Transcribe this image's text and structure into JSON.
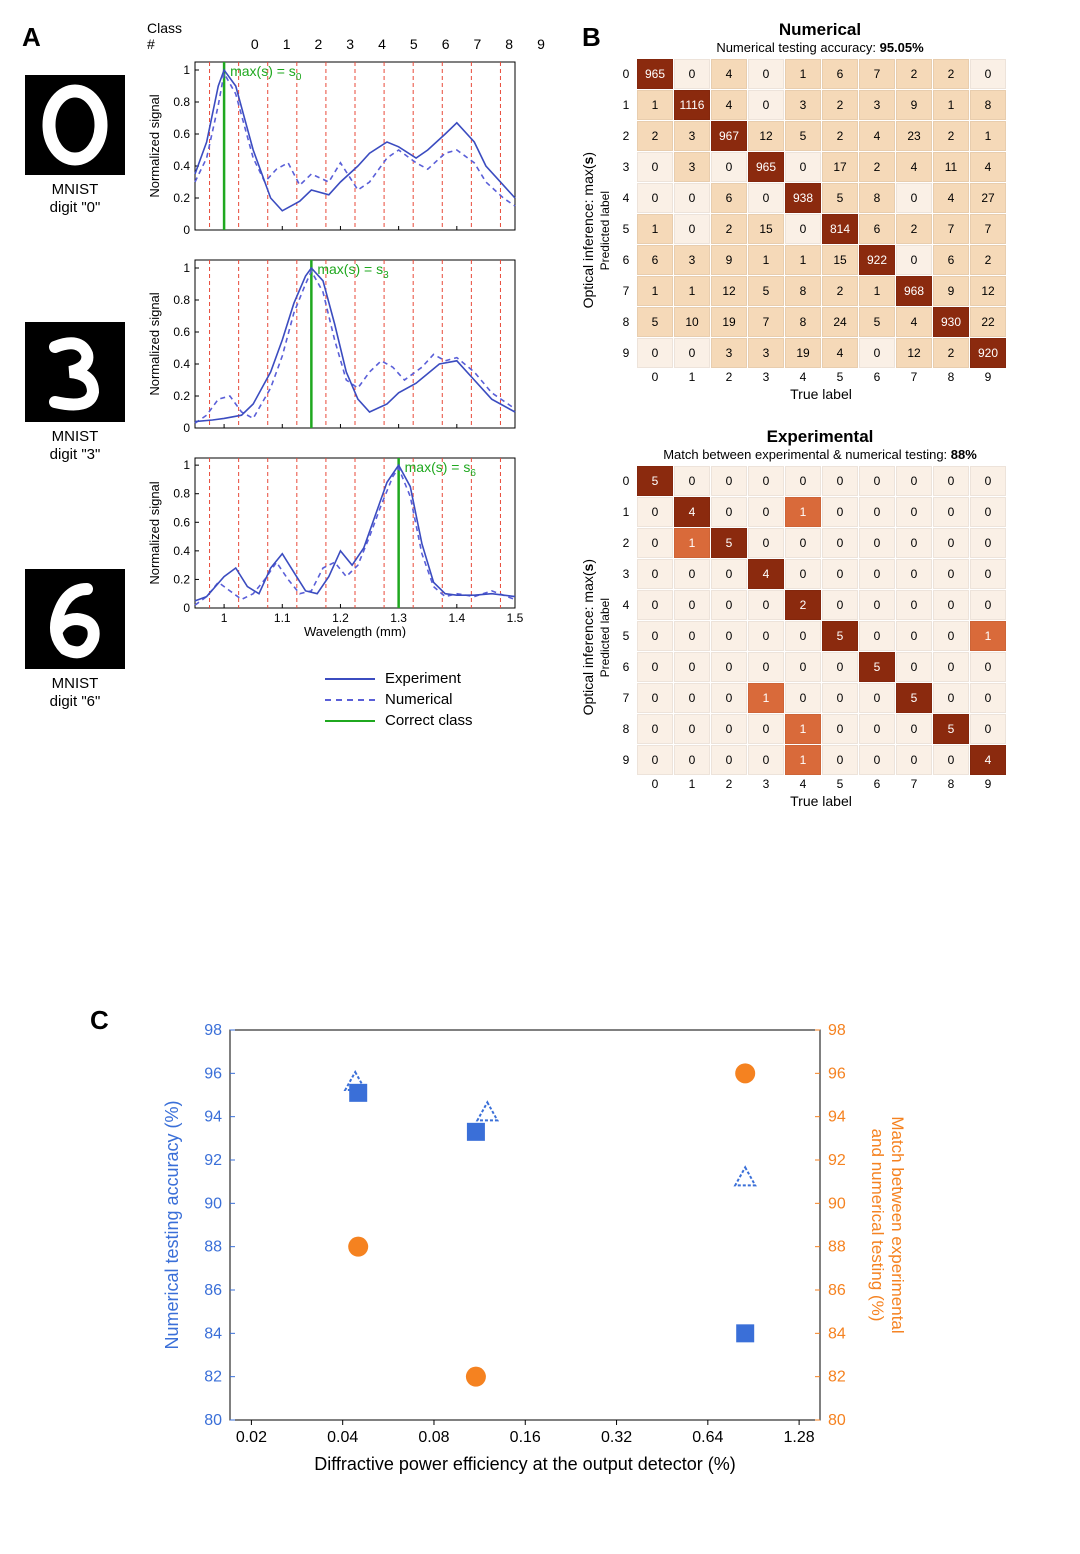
{
  "panel_labels": {
    "A": "A",
    "B": "B",
    "C": "C"
  },
  "colors": {
    "experiment_line": "#3b4cc0",
    "numerical_line": "#5a5fd8",
    "correct_line": "#1fa81f",
    "dashed_red": "#e84a3a",
    "axis": "#000000",
    "blue_marker": "#3a6fd8",
    "orange_marker": "#f58220",
    "cm_bg": "#faf0e6",
    "cm_diag": "#8b2a0e",
    "cm_mid": "#d96a3a",
    "cm_light": "#f5d9b8"
  },
  "panelA": {
    "class_header_label": "Class #",
    "class_numbers": [
      "0",
      "1",
      "2",
      "3",
      "4",
      "5",
      "6",
      "7",
      "8",
      "9"
    ],
    "y_label": "Normalized signal",
    "x_label": "Wavelength (mm)",
    "x_range": [
      0.95,
      1.5
    ],
    "y_range": [
      0,
      1.05
    ],
    "x_ticks": [
      1.0,
      1.1,
      1.2,
      1.3,
      1.4,
      1.5
    ],
    "y_ticks": [
      0,
      0.2,
      0.4,
      0.6,
      0.8,
      1
    ],
    "class_wavelengths": [
      0.975,
      1.025,
      1.075,
      1.125,
      1.175,
      1.225,
      1.275,
      1.325,
      1.375,
      1.425,
      1.475
    ],
    "legend": {
      "experiment": "Experiment",
      "numerical": "Numerical",
      "correct": "Correct class"
    },
    "digits": [
      {
        "label_line1": "MNIST",
        "label_line2": "digit \"0\"",
        "glyph": "0",
        "max_label": "max(s) = s",
        "max_sub": "0",
        "correct_x": 1.0,
        "experiment": [
          [
            0.95,
            0.35
          ],
          [
            0.97,
            0.55
          ],
          [
            0.99,
            0.9
          ],
          [
            1.0,
            1.0
          ],
          [
            1.02,
            0.9
          ],
          [
            1.05,
            0.5
          ],
          [
            1.08,
            0.2
          ],
          [
            1.1,
            0.12
          ],
          [
            1.13,
            0.18
          ],
          [
            1.15,
            0.25
          ],
          [
            1.18,
            0.22
          ],
          [
            1.2,
            0.3
          ],
          [
            1.23,
            0.4
          ],
          [
            1.25,
            0.48
          ],
          [
            1.28,
            0.55
          ],
          [
            1.3,
            0.52
          ],
          [
            1.33,
            0.45
          ],
          [
            1.35,
            0.5
          ],
          [
            1.38,
            0.6
          ],
          [
            1.4,
            0.67
          ],
          [
            1.43,
            0.55
          ],
          [
            1.45,
            0.4
          ],
          [
            1.48,
            0.28
          ],
          [
            1.5,
            0.2
          ]
        ],
        "numerical": [
          [
            0.95,
            0.3
          ],
          [
            0.97,
            0.45
          ],
          [
            0.99,
            0.78
          ],
          [
            1.0,
            0.98
          ],
          [
            1.02,
            0.85
          ],
          [
            1.05,
            0.45
          ],
          [
            1.07,
            0.3
          ],
          [
            1.09,
            0.38
          ],
          [
            1.11,
            0.42
          ],
          [
            1.13,
            0.28
          ],
          [
            1.15,
            0.35
          ],
          [
            1.18,
            0.3
          ],
          [
            1.2,
            0.42
          ],
          [
            1.23,
            0.25
          ],
          [
            1.25,
            0.3
          ],
          [
            1.28,
            0.45
          ],
          [
            1.3,
            0.5
          ],
          [
            1.33,
            0.42
          ],
          [
            1.35,
            0.38
          ],
          [
            1.38,
            0.48
          ],
          [
            1.4,
            0.5
          ],
          [
            1.43,
            0.42
          ],
          [
            1.45,
            0.3
          ],
          [
            1.48,
            0.2
          ],
          [
            1.5,
            0.15
          ]
        ]
      },
      {
        "label_line1": "MNIST",
        "label_line2": "digit \"3\"",
        "glyph": "3",
        "max_label": "max(s) = s",
        "max_sub": "3",
        "correct_x": 1.15,
        "experiment": [
          [
            0.95,
            0.04
          ],
          [
            0.98,
            0.05
          ],
          [
            1.0,
            0.06
          ],
          [
            1.03,
            0.08
          ],
          [
            1.05,
            0.15
          ],
          [
            1.08,
            0.35
          ],
          [
            1.1,
            0.55
          ],
          [
            1.12,
            0.78
          ],
          [
            1.14,
            0.95
          ],
          [
            1.15,
            1.0
          ],
          [
            1.17,
            0.92
          ],
          [
            1.19,
            0.65
          ],
          [
            1.21,
            0.35
          ],
          [
            1.23,
            0.18
          ],
          [
            1.25,
            0.1
          ],
          [
            1.28,
            0.15
          ],
          [
            1.3,
            0.22
          ],
          [
            1.33,
            0.28
          ],
          [
            1.35,
            0.34
          ],
          [
            1.37,
            0.4
          ],
          [
            1.4,
            0.42
          ],
          [
            1.43,
            0.3
          ],
          [
            1.46,
            0.18
          ],
          [
            1.5,
            0.1
          ]
        ],
        "numerical": [
          [
            0.95,
            0.03
          ],
          [
            0.97,
            0.08
          ],
          [
            0.99,
            0.18
          ],
          [
            1.01,
            0.2
          ],
          [
            1.03,
            0.1
          ],
          [
            1.05,
            0.06
          ],
          [
            1.08,
            0.25
          ],
          [
            1.1,
            0.45
          ],
          [
            1.12,
            0.72
          ],
          [
            1.14,
            0.9
          ],
          [
            1.15,
            0.98
          ],
          [
            1.17,
            0.85
          ],
          [
            1.19,
            0.55
          ],
          [
            1.21,
            0.3
          ],
          [
            1.23,
            0.25
          ],
          [
            1.25,
            0.35
          ],
          [
            1.27,
            0.42
          ],
          [
            1.29,
            0.38
          ],
          [
            1.31,
            0.3
          ],
          [
            1.34,
            0.38
          ],
          [
            1.36,
            0.46
          ],
          [
            1.38,
            0.42
          ],
          [
            1.4,
            0.44
          ],
          [
            1.43,
            0.35
          ],
          [
            1.46,
            0.22
          ],
          [
            1.5,
            0.12
          ]
        ]
      },
      {
        "label_line1": "MNIST",
        "label_line2": "digit \"6\"",
        "glyph": "6",
        "max_label": "max(s) = s",
        "max_sub": "6",
        "correct_x": 1.3,
        "experiment": [
          [
            0.95,
            0.05
          ],
          [
            0.97,
            0.08
          ],
          [
            1.0,
            0.22
          ],
          [
            1.02,
            0.28
          ],
          [
            1.04,
            0.15
          ],
          [
            1.06,
            0.1
          ],
          [
            1.08,
            0.28
          ],
          [
            1.1,
            0.38
          ],
          [
            1.12,
            0.25
          ],
          [
            1.14,
            0.12
          ],
          [
            1.16,
            0.1
          ],
          [
            1.18,
            0.22
          ],
          [
            1.2,
            0.4
          ],
          [
            1.22,
            0.3
          ],
          [
            1.24,
            0.42
          ],
          [
            1.26,
            0.65
          ],
          [
            1.28,
            0.88
          ],
          [
            1.3,
            1.0
          ],
          [
            1.32,
            0.85
          ],
          [
            1.34,
            0.45
          ],
          [
            1.36,
            0.18
          ],
          [
            1.38,
            0.1
          ],
          [
            1.4,
            0.09
          ],
          [
            1.43,
            0.09
          ],
          [
            1.46,
            0.1
          ],
          [
            1.5,
            0.08
          ]
        ],
        "numerical": [
          [
            0.95,
            0.02
          ],
          [
            0.97,
            0.08
          ],
          [
            0.99,
            0.18
          ],
          [
            1.01,
            0.12
          ],
          [
            1.03,
            0.06
          ],
          [
            1.05,
            0.1
          ],
          [
            1.07,
            0.2
          ],
          [
            1.09,
            0.32
          ],
          [
            1.11,
            0.2
          ],
          [
            1.13,
            0.1
          ],
          [
            1.15,
            0.12
          ],
          [
            1.17,
            0.28
          ],
          [
            1.19,
            0.32
          ],
          [
            1.21,
            0.22
          ],
          [
            1.23,
            0.3
          ],
          [
            1.25,
            0.5
          ],
          [
            1.27,
            0.72
          ],
          [
            1.29,
            0.92
          ],
          [
            1.3,
            0.98
          ],
          [
            1.32,
            0.78
          ],
          [
            1.34,
            0.38
          ],
          [
            1.36,
            0.15
          ],
          [
            1.38,
            0.08
          ],
          [
            1.4,
            0.1
          ],
          [
            1.43,
            0.08
          ],
          [
            1.46,
            0.12
          ],
          [
            1.5,
            0.06
          ]
        ]
      }
    ]
  },
  "panelB": {
    "numerical": {
      "title": "Numerical",
      "subtitle_prefix": "Numerical testing accuracy: ",
      "subtitle_value": "95.05%",
      "y_label_outer": "Optical inference: max(s)",
      "y_label_inner": "Predicted label",
      "x_label": "True label",
      "labels": [
        "0",
        "1",
        "2",
        "3",
        "4",
        "5",
        "6",
        "7",
        "8",
        "9"
      ],
      "max_value": 1116,
      "matrix": [
        [
          965,
          0,
          4,
          0,
          1,
          6,
          7,
          2,
          2,
          0
        ],
        [
          1,
          1116,
          4,
          0,
          3,
          2,
          3,
          9,
          1,
          8
        ],
        [
          2,
          3,
          967,
          12,
          5,
          2,
          4,
          23,
          2,
          1
        ],
        [
          0,
          3,
          0,
          965,
          0,
          17,
          2,
          4,
          11,
          4
        ],
        [
          0,
          0,
          6,
          0,
          938,
          5,
          8,
          0,
          4,
          27
        ],
        [
          1,
          0,
          2,
          15,
          0,
          814,
          6,
          2,
          7,
          7
        ],
        [
          6,
          3,
          9,
          1,
          1,
          15,
          922,
          0,
          6,
          2
        ],
        [
          1,
          1,
          12,
          5,
          8,
          2,
          1,
          968,
          9,
          12
        ],
        [
          5,
          10,
          19,
          7,
          8,
          24,
          5,
          4,
          930,
          22
        ],
        [
          0,
          0,
          3,
          3,
          19,
          4,
          0,
          12,
          2,
          920
        ]
      ]
    },
    "experimental": {
      "title": "Experimental",
      "subtitle_prefix": "Match between experimental & numerical testing: ",
      "subtitle_value": "88%",
      "y_label_outer": "Optical inference: max(s)",
      "y_label_inner": "Predicted label",
      "x_label": "True label",
      "labels": [
        "0",
        "1",
        "2",
        "3",
        "4",
        "5",
        "6",
        "7",
        "8",
        "9"
      ],
      "max_value": 5,
      "matrix": [
        [
          5,
          0,
          0,
          0,
          0,
          0,
          0,
          0,
          0,
          0
        ],
        [
          0,
          4,
          0,
          0,
          1,
          0,
          0,
          0,
          0,
          0
        ],
        [
          0,
          1,
          5,
          0,
          0,
          0,
          0,
          0,
          0,
          0
        ],
        [
          0,
          0,
          0,
          4,
          0,
          0,
          0,
          0,
          0,
          0
        ],
        [
          0,
          0,
          0,
          0,
          2,
          0,
          0,
          0,
          0,
          0
        ],
        [
          0,
          0,
          0,
          0,
          0,
          5,
          0,
          0,
          0,
          1
        ],
        [
          0,
          0,
          0,
          0,
          0,
          0,
          5,
          0,
          0,
          0
        ],
        [
          0,
          0,
          0,
          1,
          0,
          0,
          0,
          5,
          0,
          0
        ],
        [
          0,
          0,
          0,
          0,
          1,
          0,
          0,
          0,
          5,
          0
        ],
        [
          0,
          0,
          0,
          0,
          1,
          0,
          0,
          0,
          0,
          4
        ]
      ]
    }
  },
  "panelC": {
    "x_label": "Diffractive power efficiency at the output detector (%)",
    "y_label_left": "Numerical testing accuracy (%)",
    "y_label_right": "Match between experimental\nand numerical testing (%)",
    "x_ticks": [
      0.02,
      0.04,
      0.08,
      0.16,
      0.32,
      0.64,
      1.28
    ],
    "y_ticks": [
      80,
      82,
      84,
      86,
      88,
      90,
      92,
      94,
      96,
      98
    ],
    "x_log_range": [
      0.017,
      1.5
    ],
    "y_range": [
      80,
      98
    ],
    "blue_square": [
      [
        0.045,
        95.1
      ],
      [
        0.11,
        93.3
      ],
      [
        0.85,
        84.0
      ]
    ],
    "blue_triangle": [
      [
        0.044,
        95.6
      ],
      [
        0.12,
        94.2
      ],
      [
        0.85,
        91.2
      ]
    ],
    "orange_circle": [
      [
        0.045,
        88.0
      ],
      [
        0.11,
        82.0
      ],
      [
        0.85,
        96.0
      ]
    ]
  }
}
